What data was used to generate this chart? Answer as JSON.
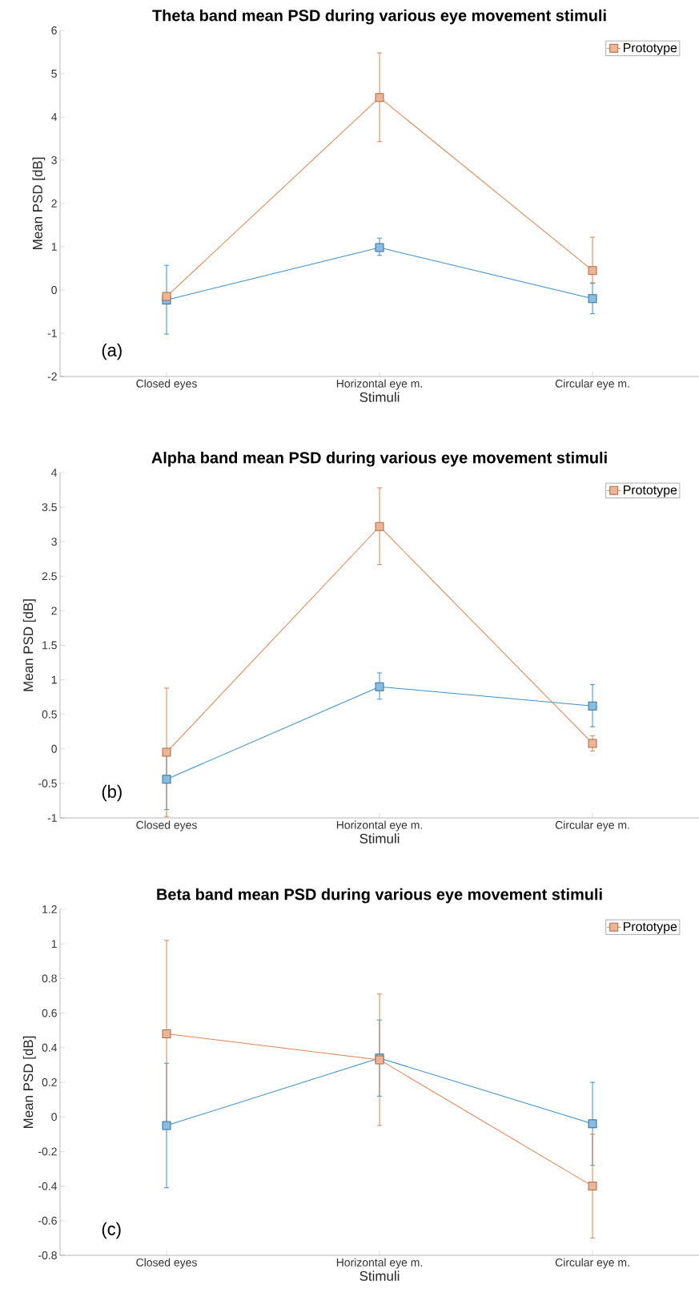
{
  "chart_data": [
    {
      "type": "line",
      "title": "Theta band mean PSD during various eye movement stimuli",
      "xlabel": "Stimuli",
      "ylabel": "Mean PSD [dB]",
      "categories": [
        "Closed eyes",
        "Horizontal eye m.",
        "Circular eye m."
      ],
      "ylim": [
        -2,
        6
      ],
      "yticks": [
        -2,
        -1,
        0,
        1,
        2,
        3,
        4,
        5,
        6
      ],
      "marker": "square",
      "legend": "top right",
      "annotations": [
        "(a)"
      ],
      "series": [
        {
          "color": "#3b8fc9",
          "values": [
            -0.23,
            0.98,
            -0.2
          ],
          "errors": [
            [
              -1.02,
              0.57
            ],
            [
              0.8,
              1.2
            ],
            [
              -0.55,
              0.15
            ]
          ]
        },
        {
          "name": "Prototype",
          "color": "#dd8452",
          "values": [
            -0.15,
            4.45,
            0.45
          ],
          "errors": [
            null,
            [
              3.43,
              5.48
            ],
            [
              0.17,
              1.22
            ]
          ]
        }
      ]
    },
    {
      "type": "line",
      "title": "Alpha band mean PSD during various eye movement stimuli",
      "xlabel": "Stimuli",
      "ylabel": "Mean PSD [dB]",
      "categories": [
        "Closed eyes",
        "Horizontal eye m.",
        "Circular eye m."
      ],
      "ylim": [
        -1,
        4
      ],
      "yticks": [
        -1,
        -0.5,
        0,
        0.5,
        1,
        1.5,
        2,
        2.5,
        3,
        3.5,
        4
      ],
      "marker": "square",
      "legend": "top right",
      "annotations": [
        "(b)"
      ],
      "series": [
        {
          "color": "#3b8fc9",
          "values": [
            -0.44,
            0.9,
            0.62
          ],
          "errors": [
            [
              -0.88,
              0
            ],
            [
              0.72,
              1.1
            ],
            [
              0.32,
              0.93
            ]
          ]
        },
        {
          "name": "Prototype",
          "color": "#dd8452",
          "values": [
            -0.05,
            3.22,
            0.08
          ],
          "errors": [
            [
              -0.98,
              0.88
            ],
            [
              2.67,
              3.78
            ],
            [
              -0.03,
              0.19
            ]
          ]
        }
      ]
    },
    {
      "type": "line",
      "title": "Beta band mean PSD during various eye movement stimuli",
      "xlabel": "Stimuli",
      "ylabel": "Mean PSD [dB]",
      "categories": [
        "Closed eyes",
        "Horizontal eye m.",
        "Circular eye m."
      ],
      "ylim": [
        -0.8,
        1.2
      ],
      "yticks": [
        -0.8,
        -0.6,
        -0.4,
        -0.2,
        0,
        0.2,
        0.4,
        0.6,
        0.8,
        1,
        1.2
      ],
      "marker": "square",
      "legend": "top right",
      "annotations": [
        "(c)"
      ],
      "series": [
        {
          "color": "#3b8fc9",
          "values": [
            -0.05,
            0.34,
            -0.04
          ],
          "errors": [
            [
              -0.41,
              0.31
            ],
            [
              0.12,
              0.56
            ],
            [
              -0.28,
              0.2
            ]
          ]
        },
        {
          "name": "Prototype",
          "color": "#dd8452",
          "values": [
            0.48,
            0.33,
            -0.4
          ],
          "errors": [
            [
              -0.06,
              1.02
            ],
            [
              -0.05,
              0.71
            ],
            [
              -0.7,
              -0.1
            ]
          ]
        }
      ]
    }
  ]
}
